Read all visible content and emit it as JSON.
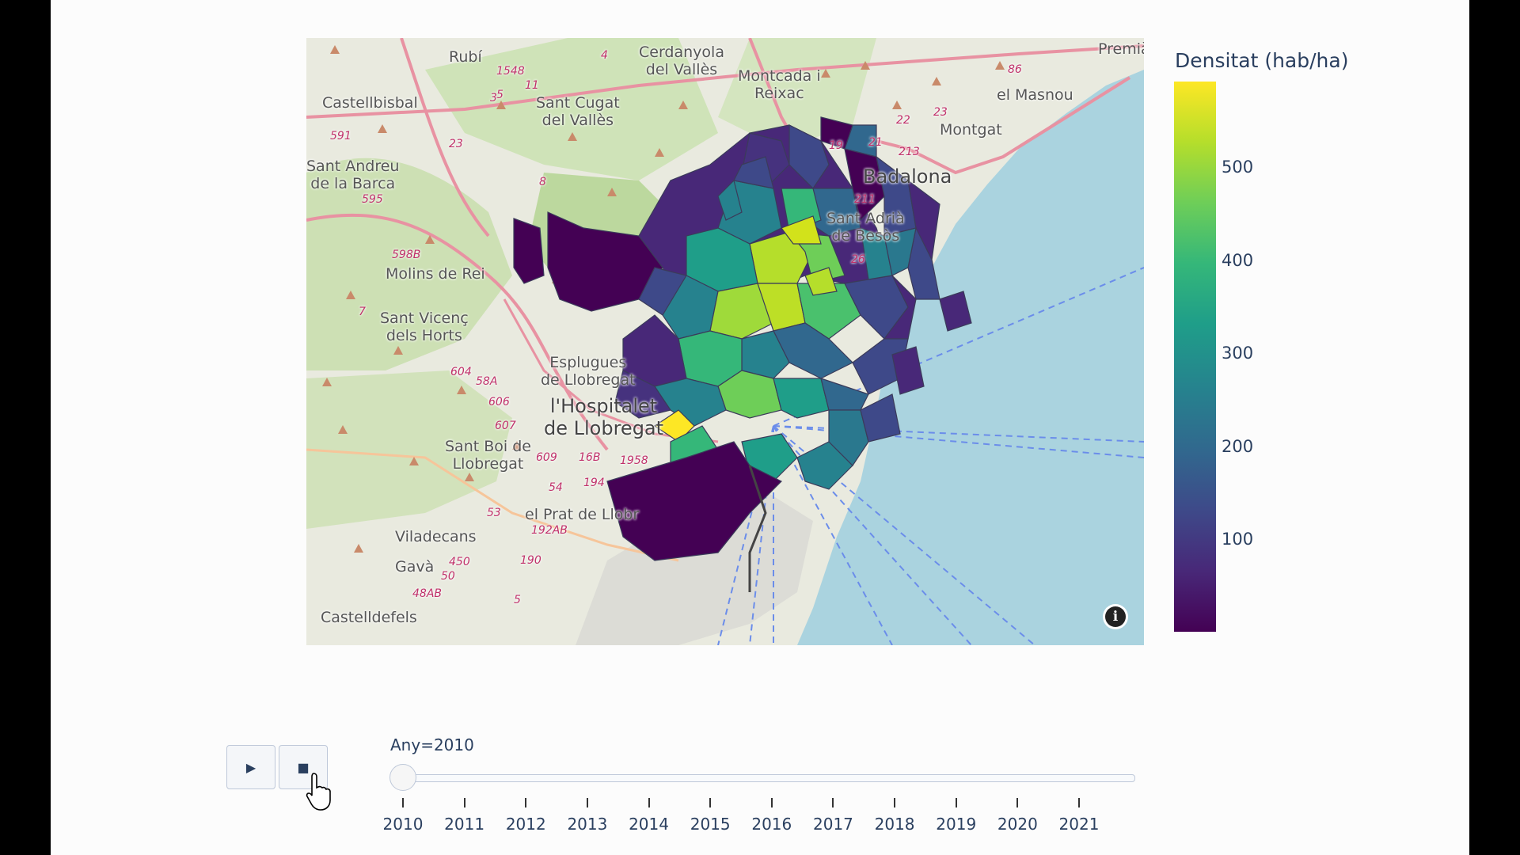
{
  "map": {
    "labels": {
      "rubi": "Rubí",
      "cerdanyola": "Cerdanyola\ndel Vallès",
      "montcada": "Montcada i\nReixac",
      "premia": "Premià",
      "masnou": "el Masnou",
      "montgat": "Montgat",
      "castellbisbal": "Castellbisbal",
      "santcugat": "Sant Cugat\ndel Vallès",
      "santandreu": "Sant Andreu\nde la Barca",
      "badalona": "Badalona",
      "santadria": "Sant Adrià\nde Besòs",
      "molins": "Molins de Rei",
      "santvicenc": "Sant Vicenç\ndels Horts",
      "esplugues": "Esplugues\nde Llobregat",
      "hospitalet": "l'Hospitalet\nde Llobregat",
      "santboi": "Sant Boi de\nLlobregat",
      "pratllob": "el Prat de Llobr",
      "viladecans": "Viladecans",
      "gava": "Gavà",
      "castelldefels": "Castelldefels"
    },
    "roads": [
      "1548",
      "591",
      "595",
      "23",
      "8",
      "11",
      "5",
      "3",
      "4",
      "19",
      "21",
      "22",
      "86",
      "23",
      "213",
      "211",
      "26",
      "598B",
      "7",
      "604",
      "58A",
      "606",
      "607",
      "609",
      "16B",
      "1958",
      "194",
      "54",
      "53",
      "192AB",
      "190",
      "450",
      "50",
      "48AB",
      "5"
    ],
    "info_icon": "i",
    "choropleth_color_scale": "viridis"
  },
  "colorbar": {
    "title": "Densitat (hab/ha)",
    "ticks": [
      "500",
      "400",
      "300",
      "200",
      "100"
    ],
    "range": [
      0,
      590
    ],
    "tick_values": [
      500,
      400,
      300,
      200,
      100
    ]
  },
  "controls": {
    "play_icon": "▶",
    "stop_icon": "■",
    "slider_label": "Any=2010",
    "current": "2010",
    "years": [
      "2010",
      "2011",
      "2012",
      "2013",
      "2014",
      "2015",
      "2016",
      "2017",
      "2018",
      "2019",
      "2020",
      "2021"
    ]
  }
}
